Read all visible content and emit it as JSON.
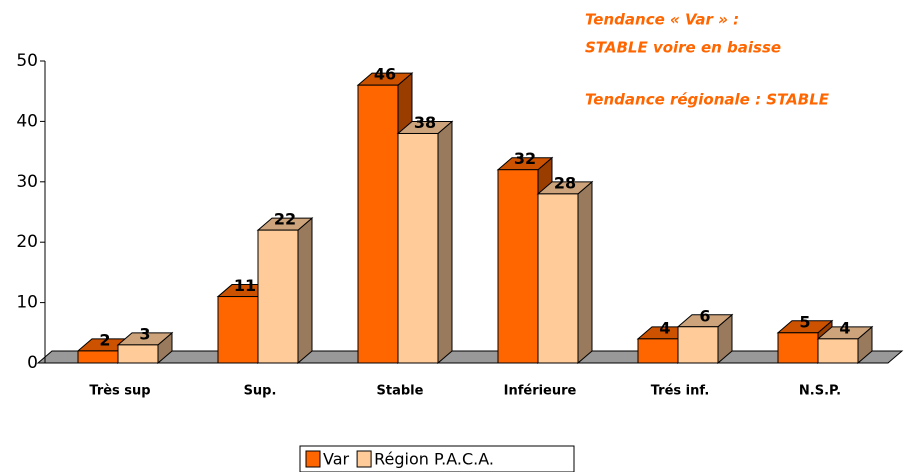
{
  "chart_data": {
    "type": "bar3d",
    "categories": [
      "Très sup",
      "Sup.",
      "Stable",
      "Inférieure",
      "Trés inf.",
      "N.S.P."
    ],
    "series": [
      {
        "name": "Var",
        "color": "#ff6600",
        "values": [
          2,
          11,
          46,
          32,
          4,
          5
        ]
      },
      {
        "name": "Région P.A.C.A.",
        "color": "#ffcc99",
        "values": [
          3,
          22,
          38,
          28,
          6,
          4
        ]
      }
    ],
    "ylim": [
      0,
      50
    ],
    "yticks": [
      0,
      10,
      20,
      30,
      40,
      50
    ],
    "annotations": [
      "Tendance « Var » :",
      "STABLE voire en baisse",
      "Tendance régionale : STABLE"
    ],
    "legend": "bottom"
  }
}
